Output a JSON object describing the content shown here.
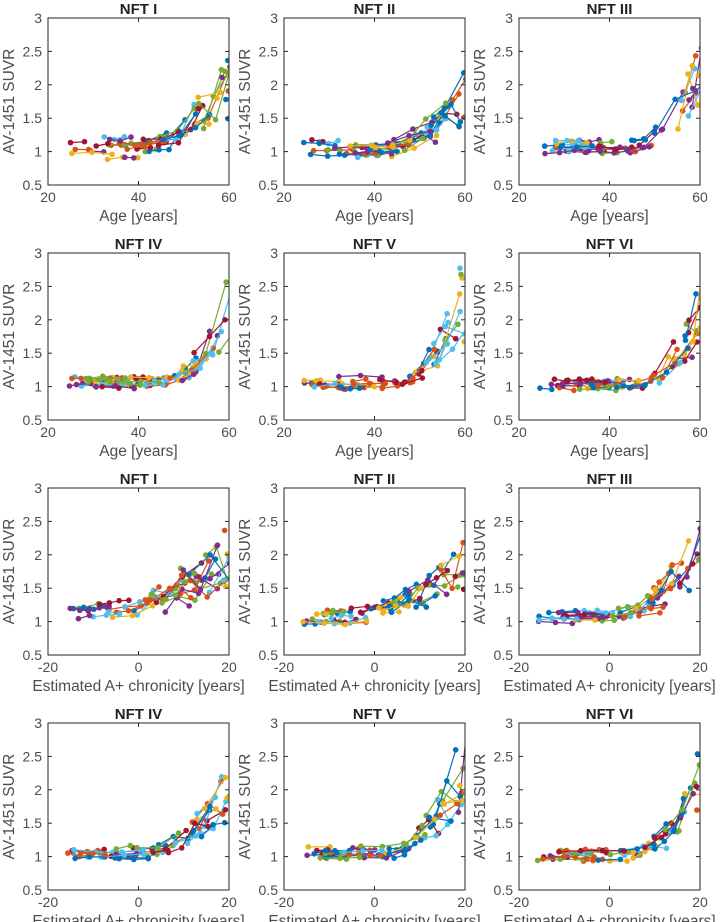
{
  "palette": [
    "#0072BD",
    "#D95319",
    "#EDB120",
    "#7E2F8E",
    "#77AC30",
    "#4DBEEE",
    "#A2142F"
  ],
  "chart_data": [
    {
      "type": "line",
      "title": "NFT I",
      "xlabel": "Age [years]",
      "ylabel": "AV-1451 SUVR",
      "xlim": [
        20,
        60
      ],
      "ylim": [
        0.5,
        3
      ],
      "xticks": [
        20,
        40,
        60
      ],
      "yticks": [
        0.5,
        1,
        1.5,
        2,
        2.5,
        3
      ],
      "grid": false,
      "profile": {
        "base": 1.05,
        "onset": 40,
        "peak": 1.2,
        "spread": 0.16,
        "seed": 11
      }
    },
    {
      "type": "line",
      "title": "NFT II",
      "xlabel": "Age [years]",
      "ylabel": "AV-1451 SUVR",
      "xlim": [
        20,
        60
      ],
      "ylim": [
        0.5,
        3
      ],
      "xticks": [
        20,
        40,
        60
      ],
      "yticks": [
        0.5,
        1,
        1.5,
        2,
        2.5,
        3
      ],
      "grid": false,
      "profile": {
        "base": 1.07,
        "onset": 42,
        "peak": 1.0,
        "spread": 0.13,
        "seed": 22
      }
    },
    {
      "type": "line",
      "title": "NFT III",
      "xlabel": "Age [years]",
      "ylabel": "AV-1451 SUVR",
      "xlim": [
        20,
        60
      ],
      "ylim": [
        0.5,
        3
      ],
      "xticks": [
        20,
        40,
        60
      ],
      "yticks": [
        0.5,
        1,
        1.5,
        2,
        2.5,
        3
      ],
      "grid": false,
      "profile": {
        "base": 1.08,
        "onset": 44,
        "peak": 1.3,
        "spread": 0.09,
        "seed": 33
      }
    },
    {
      "type": "line",
      "title": "NFT IV",
      "xlabel": "Age [years]",
      "ylabel": "AV-1451 SUVR",
      "xlim": [
        20,
        60
      ],
      "ylim": [
        0.5,
        3
      ],
      "xticks": [
        20,
        40,
        60
      ],
      "yticks": [
        0.5,
        1,
        1.5,
        2,
        2.5,
        3
      ],
      "grid": false,
      "profile": {
        "base": 1.06,
        "onset": 45,
        "peak": 1.25,
        "spread": 0.08,
        "seed": 44
      }
    },
    {
      "type": "line",
      "title": "NFT V",
      "xlabel": "Age [years]",
      "ylabel": "AV-1451 SUVR",
      "xlim": [
        20,
        60
      ],
      "ylim": [
        0.5,
        3
      ],
      "xticks": [
        20,
        40,
        60
      ],
      "yticks": [
        0.5,
        1,
        1.5,
        2,
        2.5,
        3
      ],
      "grid": false,
      "profile": {
        "base": 1.06,
        "onset": 45,
        "peak": 1.6,
        "spread": 0.08,
        "seed": 55
      }
    },
    {
      "type": "line",
      "title": "NFT VI",
      "xlabel": "Age [years]",
      "ylabel": "AV-1451 SUVR",
      "xlim": [
        20,
        60
      ],
      "ylim": [
        0.5,
        3
      ],
      "xticks": [
        20,
        40,
        60
      ],
      "yticks": [
        0.5,
        1,
        1.5,
        2,
        2.5,
        3
      ],
      "grid": false,
      "profile": {
        "base": 1.03,
        "onset": 46,
        "peak": 1.4,
        "spread": 0.08,
        "seed": 66
      }
    },
    {
      "type": "line",
      "title": "NFT I",
      "xlabel": "Estimated A+ chronicity [years]",
      "ylabel": "AV-1451 SUVR",
      "xlim": [
        -20,
        20
      ],
      "ylim": [
        0.5,
        3
      ],
      "xticks": [
        -20,
        0,
        20
      ],
      "yticks": [
        0.5,
        1,
        1.5,
        2,
        2.5,
        3
      ],
      "grid": false,
      "profile": {
        "base": 1.1,
        "onset": -14,
        "peak": 0.95,
        "spread": 0.13,
        "seed": 77
      }
    },
    {
      "type": "line",
      "title": "NFT II",
      "xlabel": "Estimated A+ chronicity [years]",
      "ylabel": "AV-1451 SUVR",
      "xlim": [
        -20,
        20
      ],
      "ylim": [
        0.5,
        3
      ],
      "xticks": [
        -20,
        0,
        20
      ],
      "yticks": [
        0.5,
        1,
        1.5,
        2,
        2.5,
        3
      ],
      "grid": false,
      "profile": {
        "base": 1.08,
        "onset": -8,
        "peak": 0.85,
        "spread": 0.11,
        "seed": 88
      }
    },
    {
      "type": "line",
      "title": "NFT III",
      "xlabel": "Estimated A+ chronicity [years]",
      "ylabel": "AV-1451 SUVR",
      "xlim": [
        -20,
        20
      ],
      "ylim": [
        0.5,
        3
      ],
      "xticks": [
        -20,
        0,
        20
      ],
      "yticks": [
        0.5,
        1,
        1.5,
        2,
        2.5,
        3
      ],
      "grid": false,
      "profile": {
        "base": 1.08,
        "onset": -2,
        "peak": 1.1,
        "spread": 0.09,
        "seed": 99
      }
    },
    {
      "type": "line",
      "title": "NFT IV",
      "xlabel": "Estimated A+ chronicity [years]",
      "ylabel": "AV-1451 SUVR",
      "xlim": [
        -20,
        20
      ],
      "ylim": [
        0.5,
        3
      ],
      "xticks": [
        -20,
        0,
        20
      ],
      "yticks": [
        0.5,
        1,
        1.5,
        2,
        2.5,
        3
      ],
      "grid": false,
      "profile": {
        "base": 1.06,
        "onset": 1,
        "peak": 1.15,
        "spread": 0.08,
        "seed": 111
      }
    },
    {
      "type": "line",
      "title": "NFT V",
      "xlabel": "Estimated A+ chronicity [years]",
      "ylabel": "AV-1451 SUVR",
      "xlim": [
        -20,
        20
      ],
      "ylim": [
        0.5,
        3
      ],
      "xticks": [
        -20,
        0,
        20
      ],
      "yticks": [
        0.5,
        1,
        1.5,
        2,
        2.5,
        3
      ],
      "grid": false,
      "profile": {
        "base": 1.06,
        "onset": 2,
        "peak": 1.5,
        "spread": 0.08,
        "seed": 122
      }
    },
    {
      "type": "line",
      "title": "NFT VI",
      "xlabel": "Estimated A+ chronicity [years]",
      "ylabel": "AV-1451 SUVR",
      "xlim": [
        -20,
        20
      ],
      "ylim": [
        0.5,
        3
      ],
      "xticks": [
        -20,
        0,
        20
      ],
      "yticks": [
        0.5,
        1,
        1.5,
        2,
        2.5,
        3
      ],
      "grid": false,
      "profile": {
        "base": 1.03,
        "onset": 4,
        "peak": 1.35,
        "spread": 0.08,
        "seed": 133
      }
    }
  ]
}
